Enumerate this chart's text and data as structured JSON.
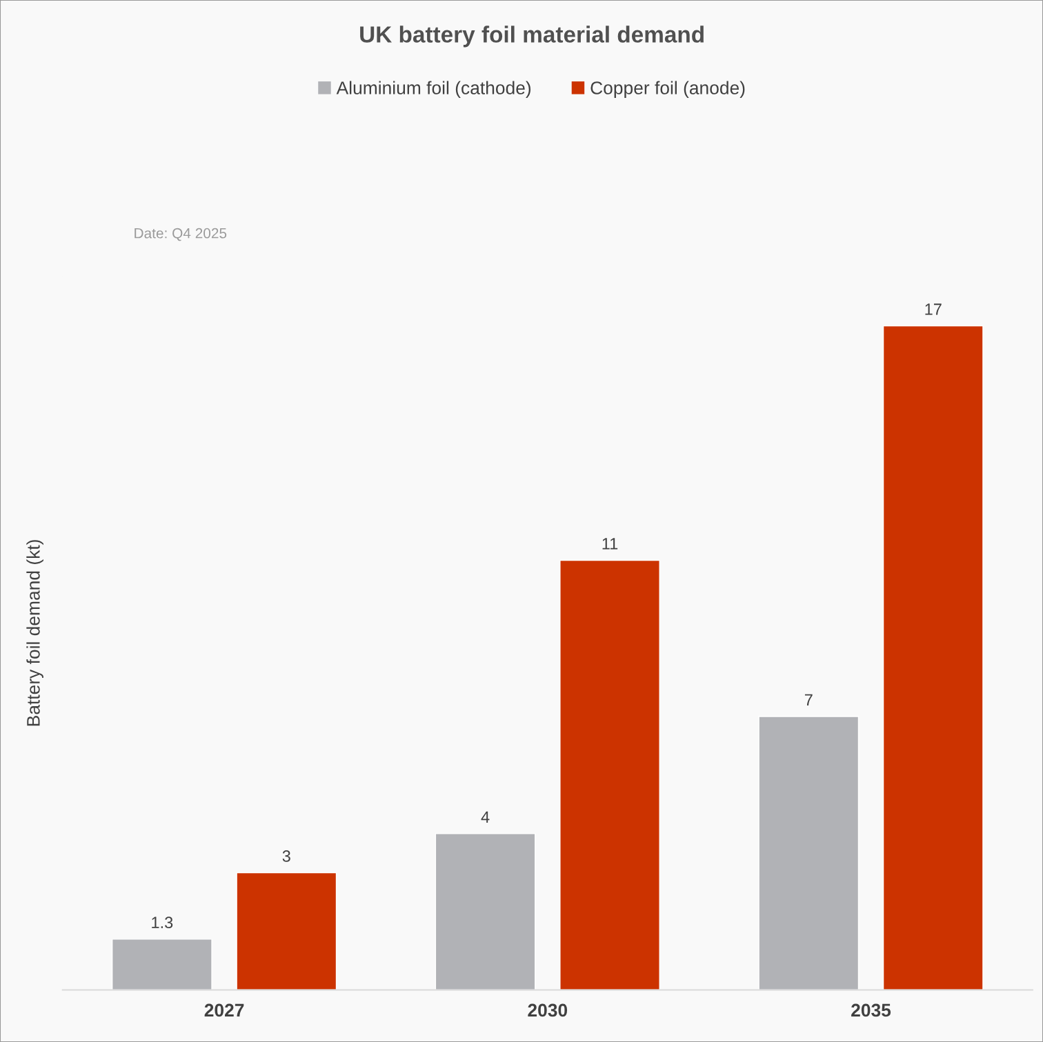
{
  "chart_data": {
    "type": "bar",
    "title": "UK battery foil material demand",
    "ylabel": "Battery foil demand (kt)",
    "categories": [
      "2027",
      "2030",
      "2035"
    ],
    "series": [
      {
        "name": "Aluminium foil (cathode)",
        "color": "#b1b2b6",
        "values": [
          1.3,
          4,
          7
        ]
      },
      {
        "name": "Copper foil (anode)",
        "color": "#cc3300",
        "values": [
          3,
          11,
          17
        ]
      }
    ],
    "data_labels": true,
    "legend": "top",
    "grid": false,
    "annotations": [
      "Date: Q4 2025"
    ]
  }
}
